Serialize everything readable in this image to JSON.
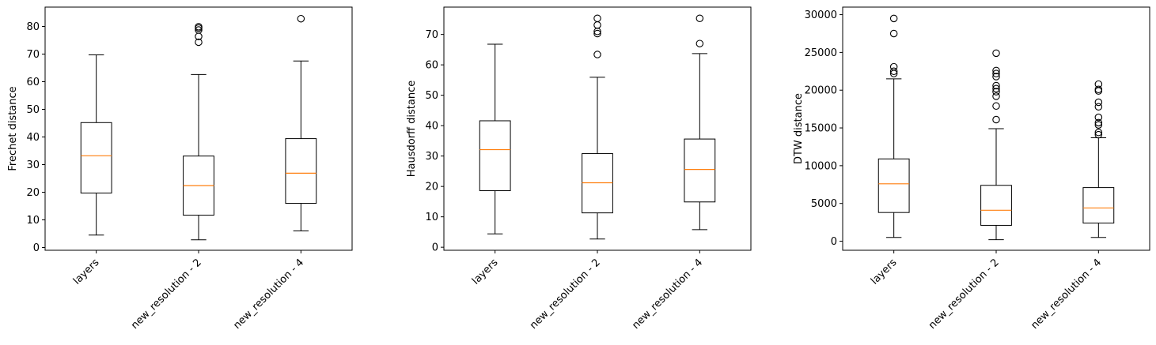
{
  "chart_data": [
    {
      "type": "box",
      "xlabel": "",
      "ylabel": "Frechet distance",
      "categories": [
        "layers",
        "new_resolution - 2",
        "new_resolution - 4"
      ],
      "ylim": [
        -1,
        87
      ],
      "yticks": [
        0,
        10,
        20,
        30,
        40,
        50,
        60,
        70,
        80
      ],
      "ytick_labels": [
        "0",
        "10",
        "20",
        "30",
        "40",
        "50",
        "60",
        "70",
        "80"
      ],
      "boxes": [
        {
          "whislo": 4.5,
          "q1": 19.7,
          "med": 33.2,
          "q3": 45.2,
          "whishi": 69.7,
          "fliers": []
        },
        {
          "whislo": 2.8,
          "q1": 11.7,
          "med": 22.4,
          "q3": 33.1,
          "whishi": 62.6,
          "fliers": [
            74.3,
            76.4,
            78.7,
            79.4,
            79.9
          ]
        },
        {
          "whislo": 6.0,
          "q1": 16.0,
          "med": 26.9,
          "q3": 39.4,
          "whishi": 67.5,
          "fliers": [
            82.8
          ]
        }
      ]
    },
    {
      "type": "box",
      "xlabel": "",
      "ylabel": "Hausdorff distance",
      "categories": [
        "layers",
        "new_resolution - 2",
        "new_resolution - 4"
      ],
      "ylim": [
        -1,
        79
      ],
      "yticks": [
        0,
        10,
        20,
        30,
        40,
        50,
        60,
        70
      ],
      "ytick_labels": [
        "0",
        "10",
        "20",
        "30",
        "40",
        "50",
        "60",
        "70"
      ],
      "boxes": [
        {
          "whislo": 4.4,
          "q1": 18.6,
          "med": 32.1,
          "q3": 41.6,
          "whishi": 66.8,
          "fliers": []
        },
        {
          "whislo": 2.7,
          "q1": 11.3,
          "med": 21.2,
          "q3": 30.8,
          "whishi": 55.9,
          "fliers": [
            63.4,
            70.3,
            71.0,
            73.1,
            75.3
          ]
        },
        {
          "whislo": 5.8,
          "q1": 14.9,
          "med": 25.6,
          "q3": 35.6,
          "whishi": 63.7,
          "fliers": [
            67.0,
            75.3
          ]
        }
      ]
    },
    {
      "type": "box",
      "xlabel": "",
      "ylabel": "DTW distance",
      "categories": [
        "layers",
        "new_resolution - 2",
        "new_resolution - 4"
      ],
      "ylim": [
        -1200,
        31000
      ],
      "yticks": [
        0,
        5000,
        10000,
        15000,
        20000,
        25000,
        30000
      ],
      "ytick_labels": [
        "0",
        "5000",
        "10000",
        "15000",
        "20000",
        "25000",
        "30000"
      ],
      "boxes": [
        {
          "whislo": 500,
          "q1": 3800,
          "med": 7600,
          "q3": 10900,
          "whishi": 21500,
          "fliers": [
            22200,
            22500,
            23100,
            27500,
            29500
          ]
        },
        {
          "whislo": 200,
          "q1": 2100,
          "med": 4100,
          "q3": 7400,
          "whishi": 14900,
          "fliers": [
            16100,
            17900,
            19200,
            19800,
            20200,
            20600,
            21800,
            22200,
            22600,
            24900
          ]
        },
        {
          "whislo": 500,
          "q1": 2400,
          "med": 4400,
          "q3": 7100,
          "whishi": 13700,
          "fliers": [
            14100,
            14400,
            15400,
            15700,
            16400,
            17800,
            18400,
            19900,
            20100,
            20800
          ]
        }
      ]
    }
  ]
}
